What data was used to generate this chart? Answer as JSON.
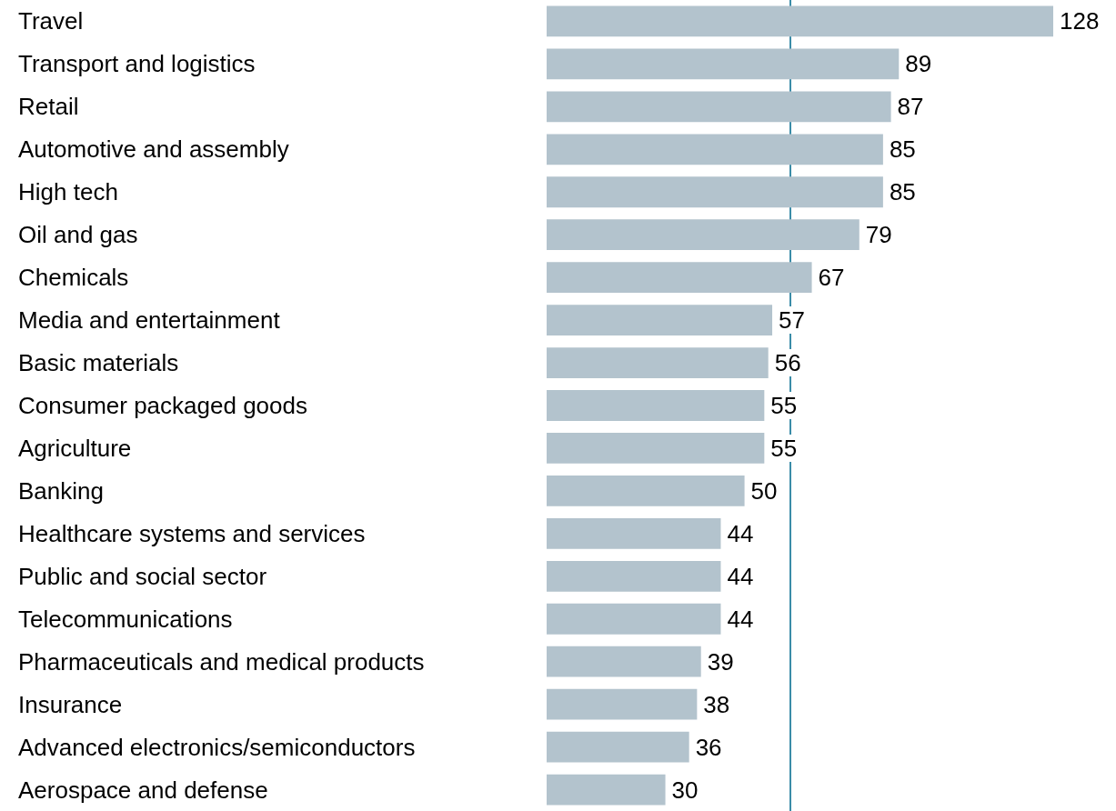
{
  "chart_data": {
    "type": "bar",
    "orientation": "horizontal",
    "categories": [
      "Travel",
      "Transport and logistics",
      "Retail",
      "Automotive and assembly",
      "High tech",
      "Oil and gas",
      "Chemicals",
      "Media and entertainment",
      "Basic materials",
      "Consumer packaged goods",
      "Agriculture",
      "Banking",
      "Healthcare systems and services",
      "Public and social sector",
      "Telecommunications",
      "Pharmaceuticals and medical products",
      "Insurance",
      "Advanced electronics/semiconductors",
      "Aerospace and defense"
    ],
    "values": [
      128,
      89,
      87,
      85,
      85,
      79,
      67,
      57,
      56,
      55,
      55,
      50,
      44,
      44,
      44,
      39,
      38,
      36,
      30
    ],
    "color": "#b3c3cd",
    "data_labels": true,
    "tick_labels": "y",
    "ref_lines": [
      {
        "axis": "x",
        "value": 61.5,
        "color": "#3a8ca8"
      }
    ]
  }
}
